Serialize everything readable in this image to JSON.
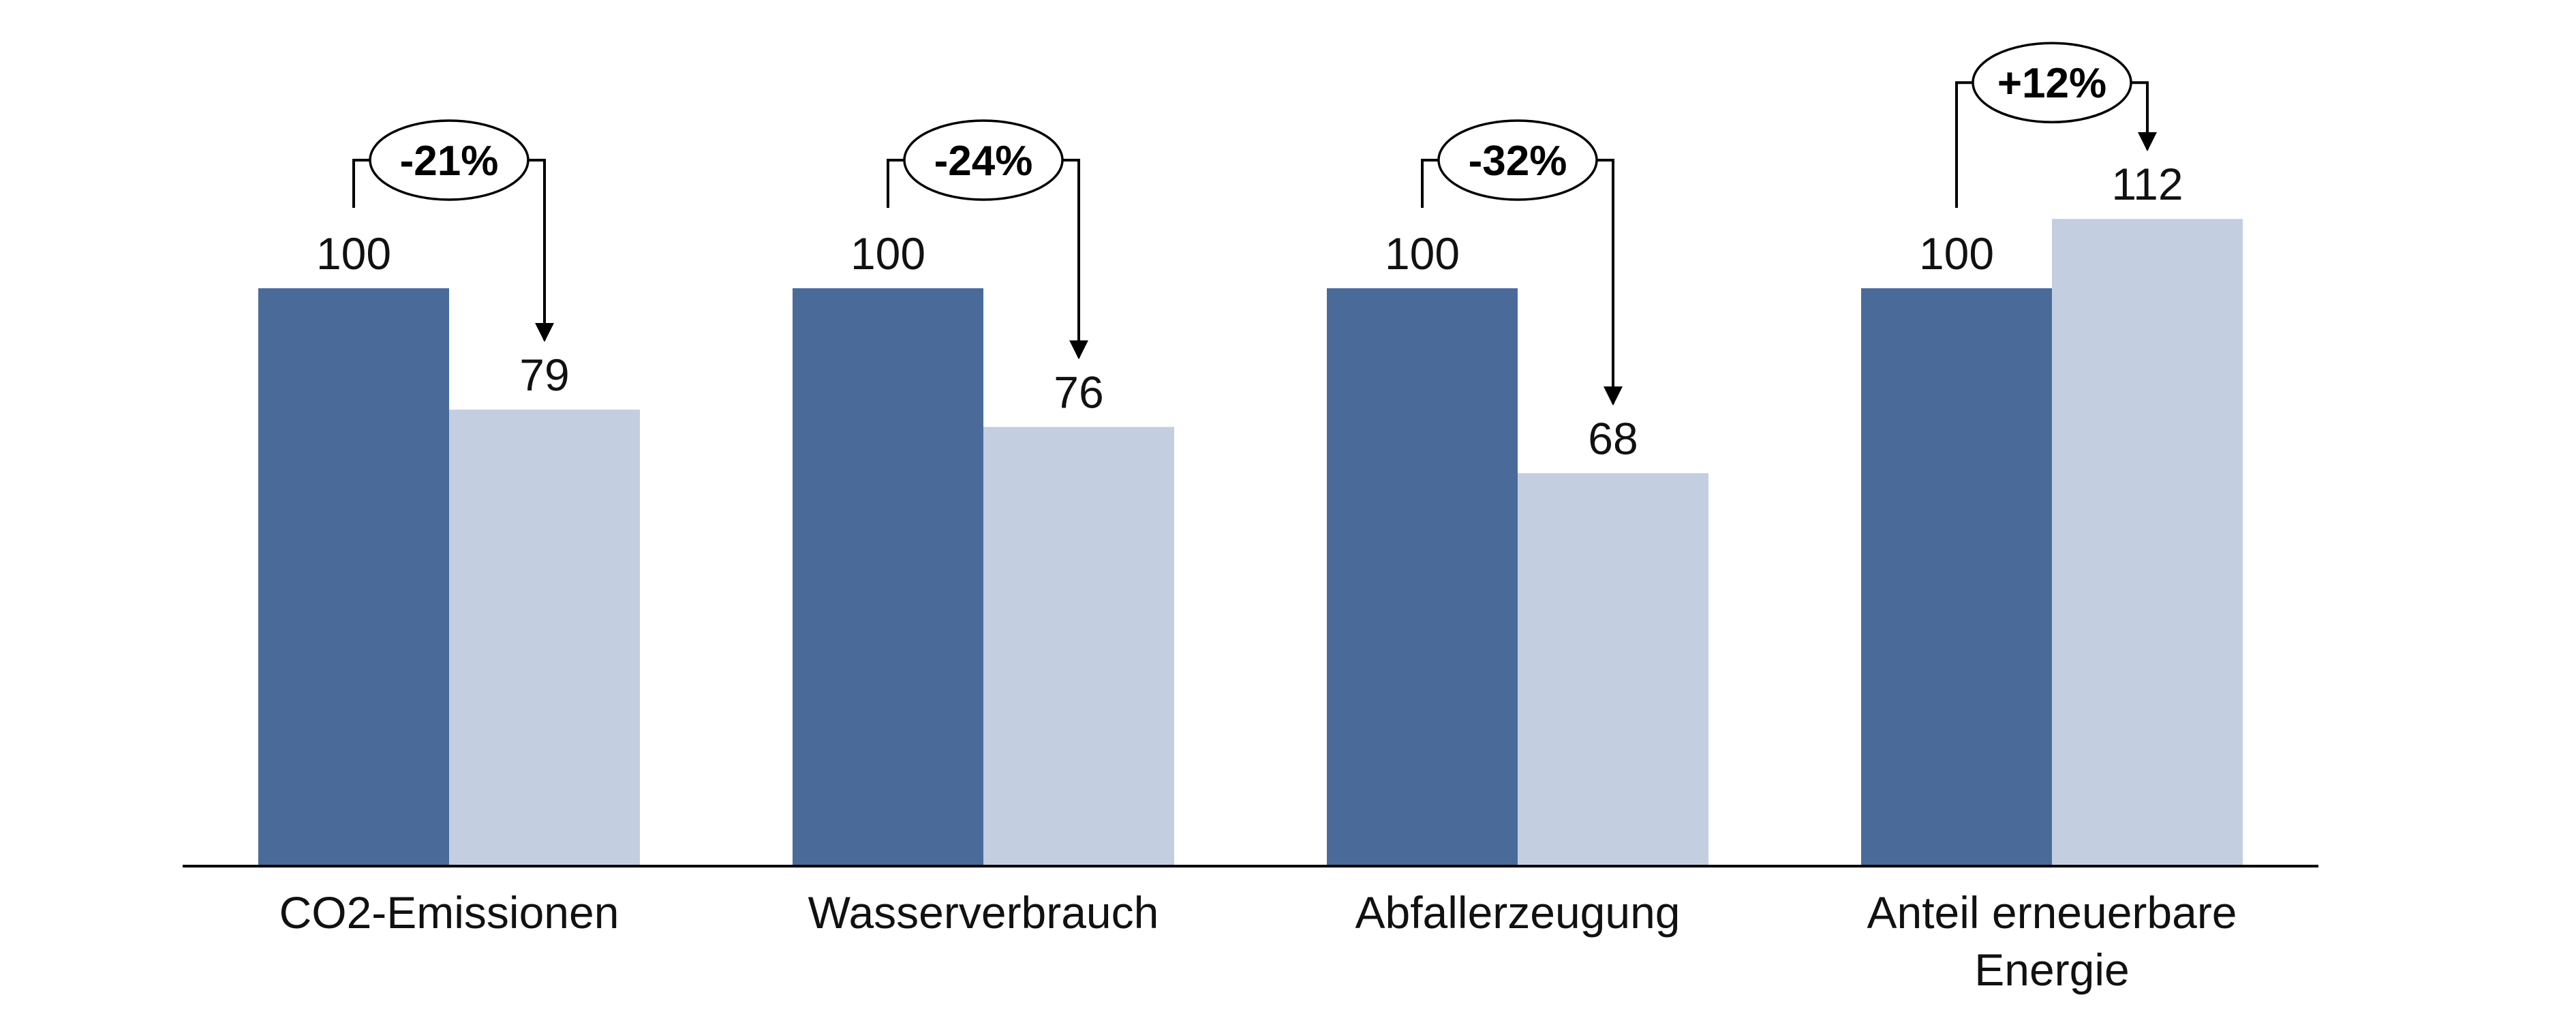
{
  "chart_data": {
    "type": "bar",
    "title": "",
    "xlabel": "",
    "ylabel": "",
    "ylim": [
      0,
      120
    ],
    "grid": false,
    "legend": "none",
    "categories": [
      [
        "CO2-Emissionen"
      ],
      [
        "Wasserverbrauch"
      ],
      [
        "Abfallerzeugung"
      ],
      [
        "Anteil erneuerbare",
        "Energie"
      ]
    ],
    "series": [
      {
        "values": [
          100,
          100,
          100,
          100
        ],
        "color": "#4a6b9a"
      },
      {
        "values": [
          79,
          76,
          68,
          112
        ],
        "color": "#c3cee1"
      }
    ],
    "changes": [
      "-21%",
      "-24%",
      "-32%",
      "+12%"
    ]
  }
}
